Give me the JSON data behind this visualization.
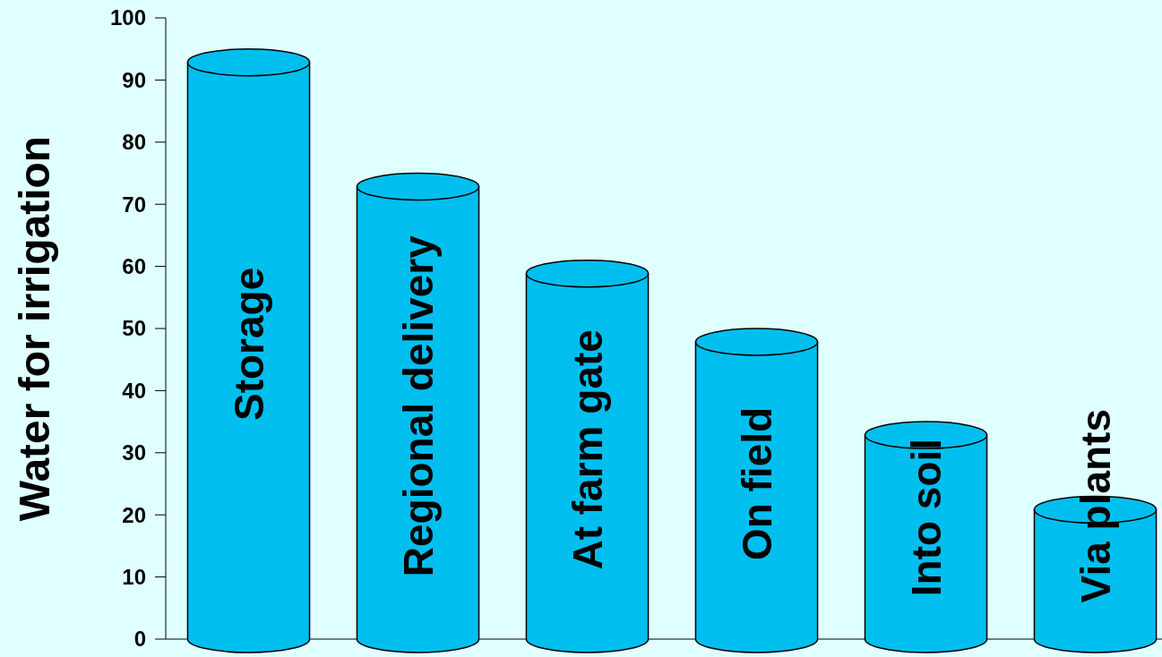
{
  "chart_data": {
    "type": "bar",
    "ylabel": "Water for irrigation",
    "categories": [
      "Storage",
      "Regional delivery",
      "At farm gate",
      "On field",
      "Into soil",
      "Via plants"
    ],
    "values": [
      95,
      75,
      61,
      50,
      35,
      23
    ],
    "color": "#00bfef",
    "ylim": [
      0,
      100
    ],
    "yticks": [
      0,
      10,
      20,
      30,
      40,
      50,
      60,
      70,
      80,
      90,
      100
    ]
  }
}
